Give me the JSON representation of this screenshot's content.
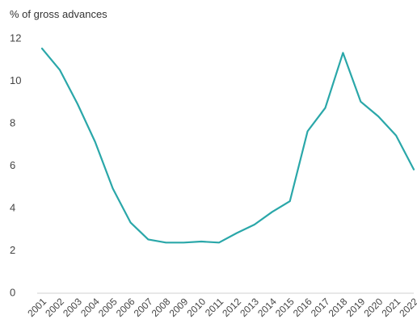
{
  "chart_data": {
    "type": "line",
    "y_unit_label": "% of gross advances",
    "x": [
      "2001",
      "2002",
      "2003",
      "2004",
      "2005",
      "2006",
      "2007",
      "2008",
      "2009",
      "2010",
      "2011",
      "2012",
      "2013",
      "2014",
      "2015",
      "2016",
      "2017",
      "2018",
      "2019",
      "2020",
      "2021",
      "2022"
    ],
    "series": [
      {
        "color": "#2aa7a9",
        "values": [
          11.5,
          10.5,
          8.9,
          7.1,
          4.9,
          3.3,
          2.5,
          2.35,
          2.35,
          2.4,
          2.35,
          2.8,
          3.2,
          3.8,
          4.3,
          7.6,
          8.7,
          11.3,
          9.0,
          8.3,
          7.4,
          5.8
        ]
      }
    ],
    "y_ticks": [
      "0",
      "2",
      "4",
      "6",
      "8",
      "10",
      "12"
    ],
    "ylim": [
      0,
      12
    ],
    "grid": false,
    "legend": "none"
  }
}
